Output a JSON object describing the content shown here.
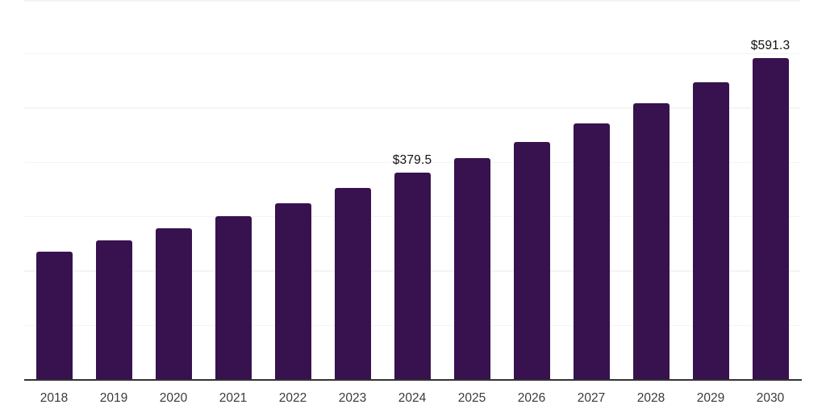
{
  "page": {
    "background": "#ffffff"
  },
  "chart_data": {
    "type": "bar",
    "title": "",
    "xlabel": "",
    "ylabel": "",
    "categories": [
      "2018",
      "2019",
      "2020",
      "2021",
      "2022",
      "2023",
      "2024",
      "2025",
      "2026",
      "2027",
      "2028",
      "2029",
      "2030"
    ],
    "values": [
      235.0,
      255.0,
      277.1,
      300.2,
      324.0,
      352.4,
      379.5,
      406.6,
      437.0,
      471.0,
      508.3,
      546.2,
      591.3
    ],
    "annotations": [
      {
        "category": "2024",
        "text": "$379.5"
      },
      {
        "category": "2030",
        "text": "$591.3"
      }
    ],
    "ylim": [
      0,
      698
    ],
    "gridline_step": 100,
    "grid": "horizontal-only",
    "y_axis_tick_labels_visible": false,
    "legend": "none",
    "colors": {
      "bar": "#37124E",
      "gridline": "#f4f4f4",
      "axis_line": "#333333",
      "tick_label": "#3a3a3a",
      "annotation_text": "#111111",
      "background": "#ffffff"
    }
  }
}
